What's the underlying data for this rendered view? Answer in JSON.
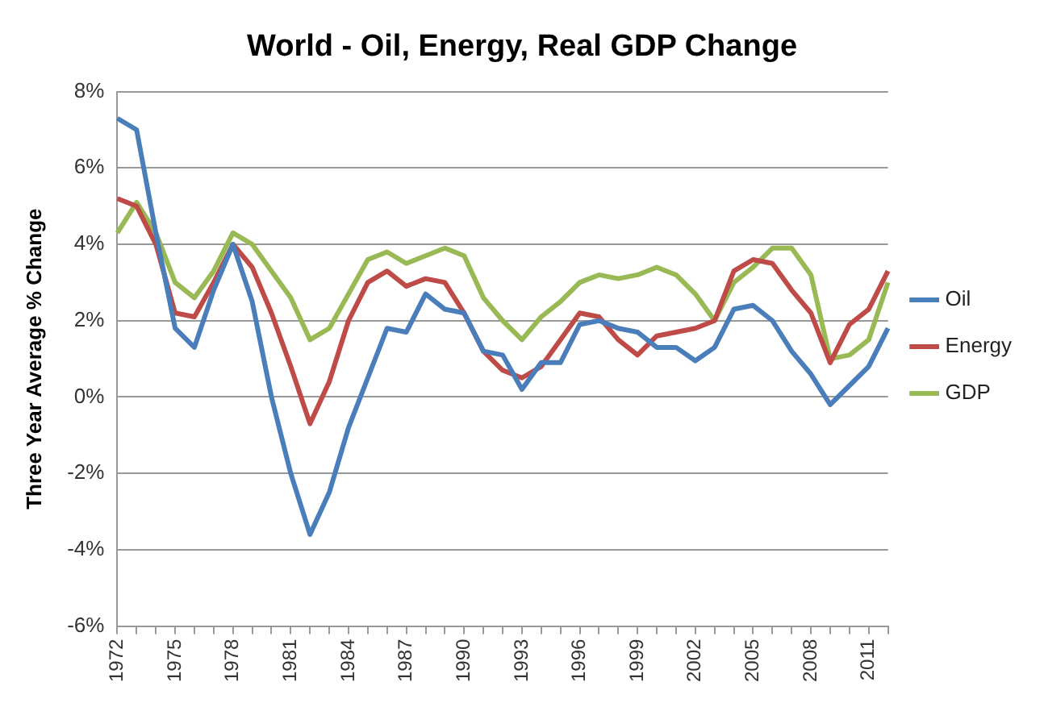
{
  "chart_data": {
    "type": "line",
    "title": "World - Oil, Energy, Real GDP Change",
    "ylabel": "Three Year Average % Change",
    "categories": [
      "1972",
      null,
      null,
      "1975",
      null,
      null,
      "1978",
      null,
      null,
      "1981",
      null,
      null,
      "1984",
      null,
      null,
      "1987",
      null,
      null,
      "1990",
      null,
      null,
      "1993",
      null,
      null,
      "1996",
      null,
      null,
      "1999",
      null,
      null,
      "2002",
      null,
      null,
      "2005",
      null,
      null,
      "2008",
      null,
      null,
      "2011",
      null
    ],
    "series": [
      {
        "name": "Oil",
        "color": "#4a7ebb",
        "values": [
          7.3,
          7.0,
          4.3,
          1.8,
          1.3,
          2.8,
          4.0,
          2.5,
          0.0,
          -2.0,
          -3.6,
          -2.5,
          -0.8,
          0.5,
          1.8,
          1.7,
          2.7,
          2.3,
          2.2,
          1.2,
          1.1,
          0.2,
          0.9,
          0.9,
          1.9,
          2.0,
          1.8,
          1.7,
          1.3,
          1.3,
          0.95,
          1.3,
          2.3,
          2.4,
          2.0,
          1.2,
          0.6,
          -0.2,
          0.3,
          0.8,
          1.8
        ]
      },
      {
        "name": "Energy",
        "color": "#be4b48",
        "values": [
          5.2,
          5.0,
          4.0,
          2.2,
          2.1,
          3.0,
          4.0,
          3.4,
          2.2,
          0.8,
          -0.7,
          0.4,
          2.0,
          3.0,
          3.3,
          2.9,
          3.1,
          3.0,
          2.2,
          1.2,
          0.7,
          0.5,
          0.8,
          1.5,
          2.2,
          2.1,
          1.5,
          1.1,
          1.6,
          1.7,
          1.8,
          2.0,
          3.3,
          3.6,
          3.5,
          2.8,
          2.2,
          0.9,
          1.9,
          2.3,
          3.3
        ]
      },
      {
        "name": "GDP",
        "color": "#98b954",
        "values": [
          4.3,
          5.1,
          4.3,
          3.0,
          2.6,
          3.3,
          4.3,
          4.0,
          3.3,
          2.6,
          1.5,
          1.8,
          2.7,
          3.6,
          3.8,
          3.5,
          3.7,
          3.9,
          3.7,
          2.6,
          2.0,
          1.5,
          2.1,
          2.5,
          3.0,
          3.2,
          3.1,
          3.2,
          3.4,
          3.2,
          2.7,
          2.0,
          3.0,
          3.4,
          3.9,
          3.9,
          3.2,
          1.0,
          1.1,
          1.5,
          3.0
        ]
      }
    ],
    "ylim": [
      -6,
      8
    ],
    "yticks": [
      {
        "value": -6,
        "label": "-6%"
      },
      {
        "value": -4,
        "label": "-4%"
      },
      {
        "value": -2,
        "label": "-2%"
      },
      {
        "value": 0,
        "label": "0%"
      },
      {
        "value": 2,
        "label": "2%"
      },
      {
        "value": 4,
        "label": "4%"
      },
      {
        "value": 6,
        "label": "6%"
      },
      {
        "value": 8,
        "label": "8%"
      }
    ],
    "grid": "y",
    "legend": "right",
    "marker": "none",
    "line_style": "solid"
  }
}
